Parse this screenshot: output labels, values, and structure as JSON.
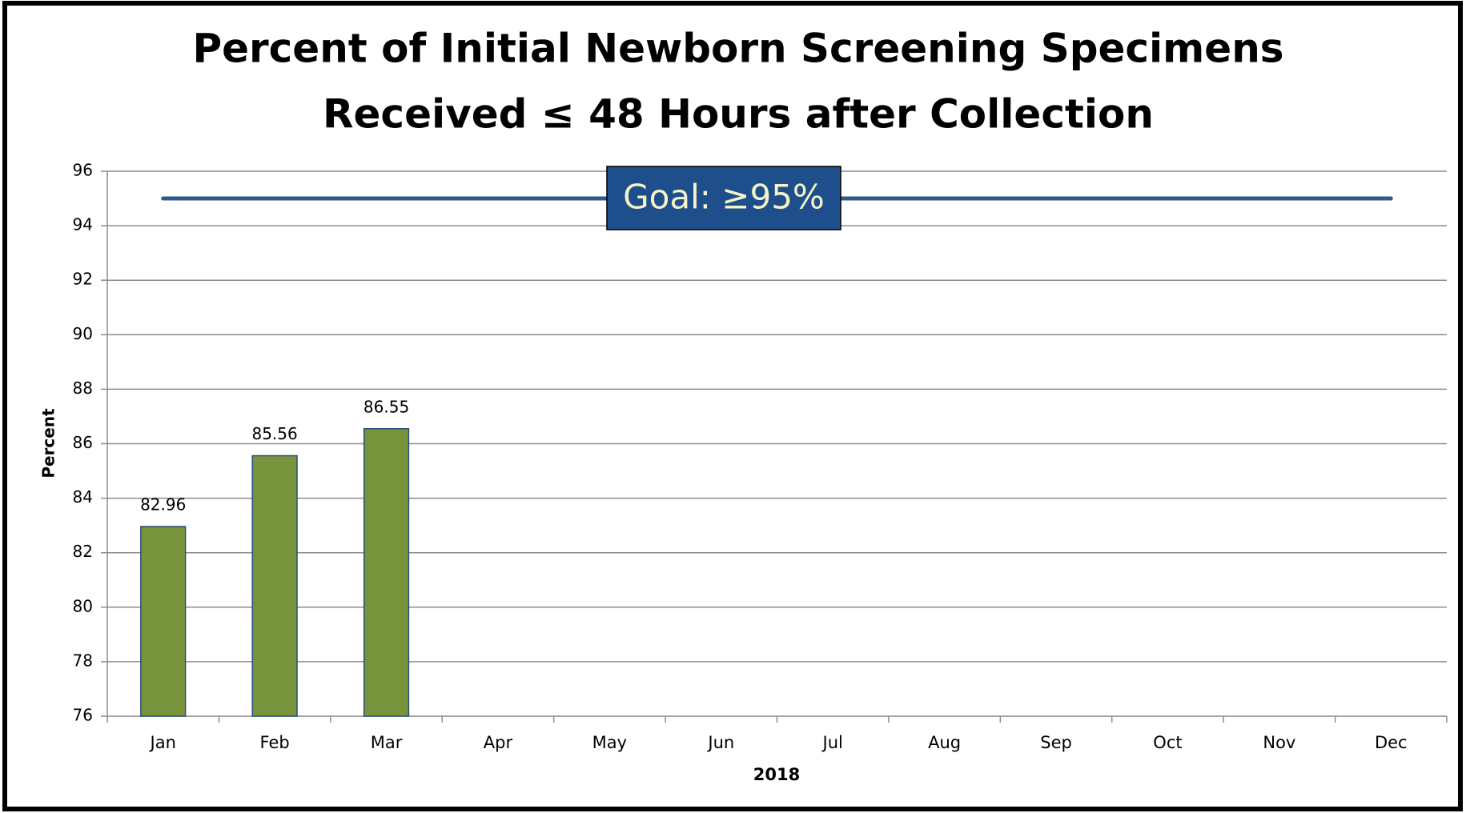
{
  "chart_data": {
    "type": "bar",
    "title": [
      "Percent of Initial Newborn Screening Specimens",
      "Received ≤ 48 Hours after Collection"
    ],
    "categories": [
      "Jan",
      "Feb",
      "Mar",
      "Apr",
      "May",
      "Jun",
      "Jul",
      "Aug",
      "Sep",
      "Oct",
      "Nov",
      "Dec"
    ],
    "values": [
      82.96,
      85.56,
      86.55,
      null,
      null,
      null,
      null,
      null,
      null,
      null,
      null,
      null
    ],
    "color": "#77933c",
    "ylim": [
      76,
      96
    ],
    "yticks": [
      76,
      78,
      80,
      82,
      84,
      86,
      88,
      90,
      92,
      94,
      96
    ],
    "grid": true,
    "y_label": "Percent",
    "x_label": "2018",
    "goal": {
      "value": 95,
      "label": "Goal: ≥95%",
      "color": "#2f5b8c"
    }
  }
}
